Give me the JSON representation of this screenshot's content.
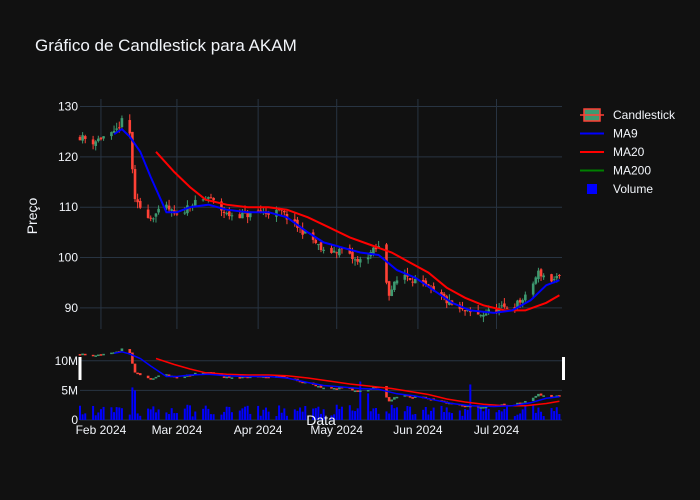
{
  "chart_data": {
    "type": "candlestick",
    "title": "Gráfico de Candlestick para AKAM",
    "xlabel": "Data",
    "ylabel": "Preço",
    "price_ylim": [
      85.8,
      131.5
    ],
    "volume_ylim": [
      0,
      13000000
    ],
    "price_yticks": [
      90,
      100,
      110,
      120,
      130
    ],
    "volume_yticks": [
      {
        "value": 0,
        "label": "0"
      },
      {
        "value": 5000000,
        "label": "5M"
      },
      {
        "value": 10000000,
        "label": "10M"
      }
    ],
    "x_range": [
      "2024-01-24",
      "2024-07-26"
    ],
    "x_ticks": [
      {
        "date": "2024-02-01",
        "label": "Feb 2024"
      },
      {
        "date": "2024-03-01",
        "label": "Mar 2024"
      },
      {
        "date": "2024-04-01",
        "label": "Apr 2024"
      },
      {
        "date": "2024-05-01",
        "label": "May 2024"
      },
      {
        "date": "2024-06-01",
        "label": "Jun 2024"
      },
      {
        "date": "2024-07-01",
        "label": "Jul 2024"
      }
    ],
    "grid": true,
    "legend_position": "top-right",
    "colors": {
      "up": "#3d9970",
      "down": "#ff4136",
      "ma9": "#0000ff",
      "ma20": "#ff0000",
      "ma200": "#008000",
      "volume": "#0000ff",
      "background": "#111111",
      "grid": "#283442",
      "text": "#f2f5fa"
    },
    "legend": [
      {
        "name": "Candlestick",
        "icon": "candlestick-icon"
      },
      {
        "name": "MA9",
        "icon": "line-icon"
      },
      {
        "name": "MA20",
        "icon": "line-icon"
      },
      {
        "name": "MA200",
        "icon": "line-icon"
      },
      {
        "name": "Volume",
        "icon": "square-icon"
      }
    ],
    "ohlc_anchors": [
      {
        "date": "2024-01-24",
        "close": 124
      },
      {
        "date": "2024-01-29",
        "close": 123
      },
      {
        "date": "2024-02-02",
        "close": 124
      },
      {
        "date": "2024-02-06",
        "close": 124.5
      },
      {
        "date": "2024-02-09",
        "close": 127
      },
      {
        "date": "2024-02-12",
        "close": 124.5
      },
      {
        "date": "2024-02-14",
        "close": 111
      },
      {
        "date": "2024-02-16",
        "close": 110
      },
      {
        "date": "2024-02-20",
        "close": 108
      },
      {
        "date": "2024-02-26",
        "close": 110
      },
      {
        "date": "2024-03-01",
        "close": 108
      },
      {
        "date": "2024-03-06",
        "close": 110.5
      },
      {
        "date": "2024-03-10",
        "close": 111
      },
      {
        "date": "2024-03-13",
        "close": 112
      },
      {
        "date": "2024-03-20",
        "close": 108.5
      },
      {
        "date": "2024-03-28",
        "close": 108.5
      },
      {
        "date": "2024-04-03",
        "close": 109
      },
      {
        "date": "2024-04-10",
        "close": 109
      },
      {
        "date": "2024-04-15",
        "close": 106.5
      },
      {
        "date": "2024-04-22",
        "close": 103.5
      },
      {
        "date": "2024-04-26",
        "close": 101
      },
      {
        "date": "2024-05-03",
        "close": 101.5
      },
      {
        "date": "2024-05-09",
        "close": 99
      },
      {
        "date": "2024-05-14",
        "close": 101
      },
      {
        "date": "2024-05-17",
        "close": 102
      },
      {
        "date": "2024-05-21",
        "close": 93
      },
      {
        "date": "2024-05-26",
        "close": 97
      },
      {
        "date": "2024-06-03",
        "close": 94.5
      },
      {
        "date": "2024-06-10",
        "close": 92
      },
      {
        "date": "2024-06-17",
        "close": 89.5
      },
      {
        "date": "2024-06-24",
        "close": 88.5
      },
      {
        "date": "2024-06-30",
        "close": 89.5
      },
      {
        "date": "2024-07-08",
        "close": 90.5
      },
      {
        "date": "2024-07-12",
        "close": 92
      },
      {
        "date": "2024-07-17",
        "close": 97
      },
      {
        "date": "2024-07-22",
        "close": 95.5
      },
      {
        "date": "2024-07-25",
        "close": 96
      }
    ],
    "ma9": [
      [
        "2024-02-06",
        124.5
      ],
      [
        "2024-02-09",
        125.5
      ],
      [
        "2024-02-12",
        124
      ],
      [
        "2024-02-16",
        121
      ],
      [
        "2024-02-20",
        116
      ],
      [
        "2024-02-26",
        109
      ],
      [
        "2024-03-01",
        109
      ],
      [
        "2024-03-06",
        110
      ],
      [
        "2024-03-13",
        110.5
      ],
      [
        "2024-03-20",
        109.5
      ],
      [
        "2024-03-28",
        109
      ],
      [
        "2024-04-05",
        109
      ],
      [
        "2024-04-12",
        108
      ],
      [
        "2024-04-20",
        105
      ],
      [
        "2024-04-26",
        103
      ],
      [
        "2024-05-03",
        102
      ],
      [
        "2024-05-10",
        101
      ],
      [
        "2024-05-17",
        100.5
      ],
      [
        "2024-05-24",
        97.5
      ],
      [
        "2024-05-31",
        96
      ],
      [
        "2024-06-07",
        93.5
      ],
      [
        "2024-06-14",
        91
      ],
      [
        "2024-06-21",
        89.5
      ],
      [
        "2024-06-30",
        89
      ],
      [
        "2024-07-07",
        89.5
      ],
      [
        "2024-07-14",
        91.5
      ],
      [
        "2024-07-20",
        94.5
      ],
      [
        "2024-07-25",
        95.5
      ]
    ],
    "ma20": [
      [
        "2024-02-22",
        121
      ],
      [
        "2024-02-29",
        117
      ],
      [
        "2024-03-06",
        114
      ],
      [
        "2024-03-12",
        111.5
      ],
      [
        "2024-03-20",
        110.5
      ],
      [
        "2024-03-28",
        110
      ],
      [
        "2024-04-05",
        110
      ],
      [
        "2024-04-12",
        109.5
      ],
      [
        "2024-04-20",
        108
      ],
      [
        "2024-04-28",
        106
      ],
      [
        "2024-05-06",
        104
      ],
      [
        "2024-05-14",
        102.5
      ],
      [
        "2024-05-22",
        101
      ],
      [
        "2024-05-29",
        99
      ],
      [
        "2024-06-05",
        97
      ],
      [
        "2024-06-12",
        94
      ],
      [
        "2024-06-19",
        92
      ],
      [
        "2024-06-26",
        90.5
      ],
      [
        "2024-07-04",
        89.5
      ],
      [
        "2024-07-12",
        89.5
      ],
      [
        "2024-07-20",
        91
      ],
      [
        "2024-07-25",
        92.5
      ]
    ],
    "volume_highlights": [
      {
        "date": "2024-02-13",
        "value": 5500000
      },
      {
        "date": "2024-02-14",
        "value": 5000000
      },
      {
        "date": "2024-05-10",
        "value": 6500000
      },
      {
        "date": "2024-05-13",
        "value": 4500000
      },
      {
        "date": "2024-06-21",
        "value": 6000000
      }
    ]
  }
}
